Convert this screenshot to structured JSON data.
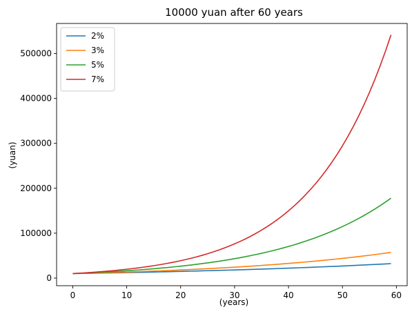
{
  "chart_data": {
    "type": "line",
    "title": "10000 yuan after 60 years",
    "xlabel": "(years)",
    "ylabel": "(yuan)",
    "xlim": [
      -3,
      62
    ],
    "ylim": [
      -17000,
      567000
    ],
    "x_ticks": [
      0,
      10,
      20,
      30,
      40,
      50,
      60
    ],
    "y_ticks": [
      0,
      100000,
      200000,
      300000,
      400000,
      500000
    ],
    "x_tick_labels": [
      "0",
      "10",
      "20",
      "30",
      "40",
      "50",
      "60"
    ],
    "y_tick_labels": [
      "0",
      "100000",
      "200000",
      "300000",
      "400000",
      "500000"
    ],
    "grid": false,
    "legend_position": "top-left",
    "principal": 10000,
    "x_range": [
      0,
      59
    ],
    "series": [
      {
        "name": "2%",
        "rate": 0.02,
        "color": "#1f77b4"
      },
      {
        "name": "3%",
        "rate": 0.03,
        "color": "#ff7f0e"
      },
      {
        "name": "5%",
        "rate": 0.05,
        "color": "#2ca02c"
      },
      {
        "name": "7%",
        "rate": 0.07,
        "color": "#d62728"
      }
    ]
  }
}
